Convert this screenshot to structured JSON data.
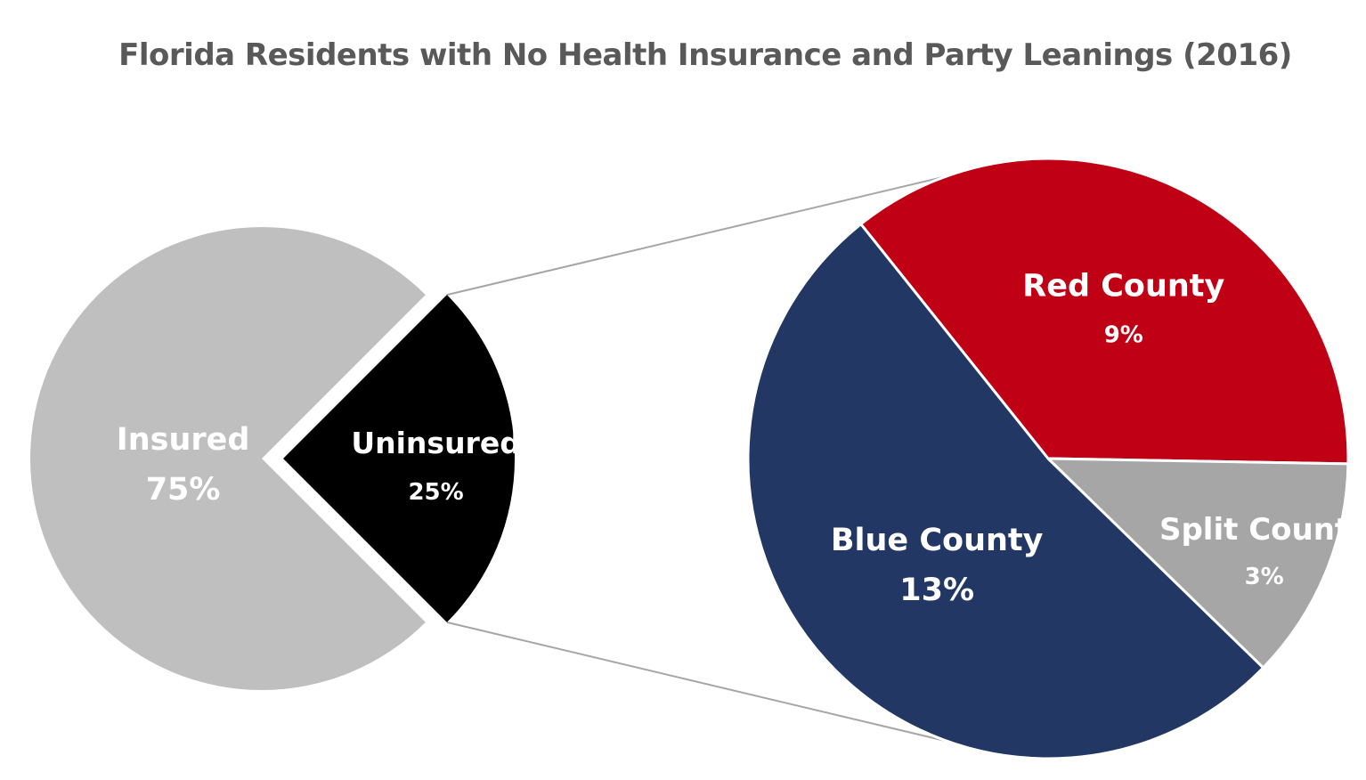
{
  "chart_data": [
    {
      "type": "pie",
      "title": "Florida Residents with No Health Insurance and Party Leanings (2016)",
      "slices": [
        {
          "label": "Insured",
          "value": 75,
          "value_label": "75%",
          "color": "#bfbfbf",
          "text_color": "#ffffff"
        },
        {
          "label": "Uninsured",
          "value": 25,
          "value_label": "25%",
          "color": "#000000",
          "text_color": "#ffffff"
        }
      ]
    },
    {
      "type": "pie",
      "subtype": "pie-of-pie breakdown of Uninsured",
      "slices": [
        {
          "label": "Red County",
          "value": 9,
          "value_label": "9%",
          "color": "#c00014",
          "text_color": "#ffffff"
        },
        {
          "label": "Split County",
          "value": 3,
          "value_label": "3%",
          "color": "#a6a6a6",
          "text_color": "#ffffff"
        },
        {
          "label": "Blue County",
          "value": 13,
          "value_label": "13%",
          "color": "#223763",
          "text_color": "#ffffff"
        }
      ]
    }
  ]
}
